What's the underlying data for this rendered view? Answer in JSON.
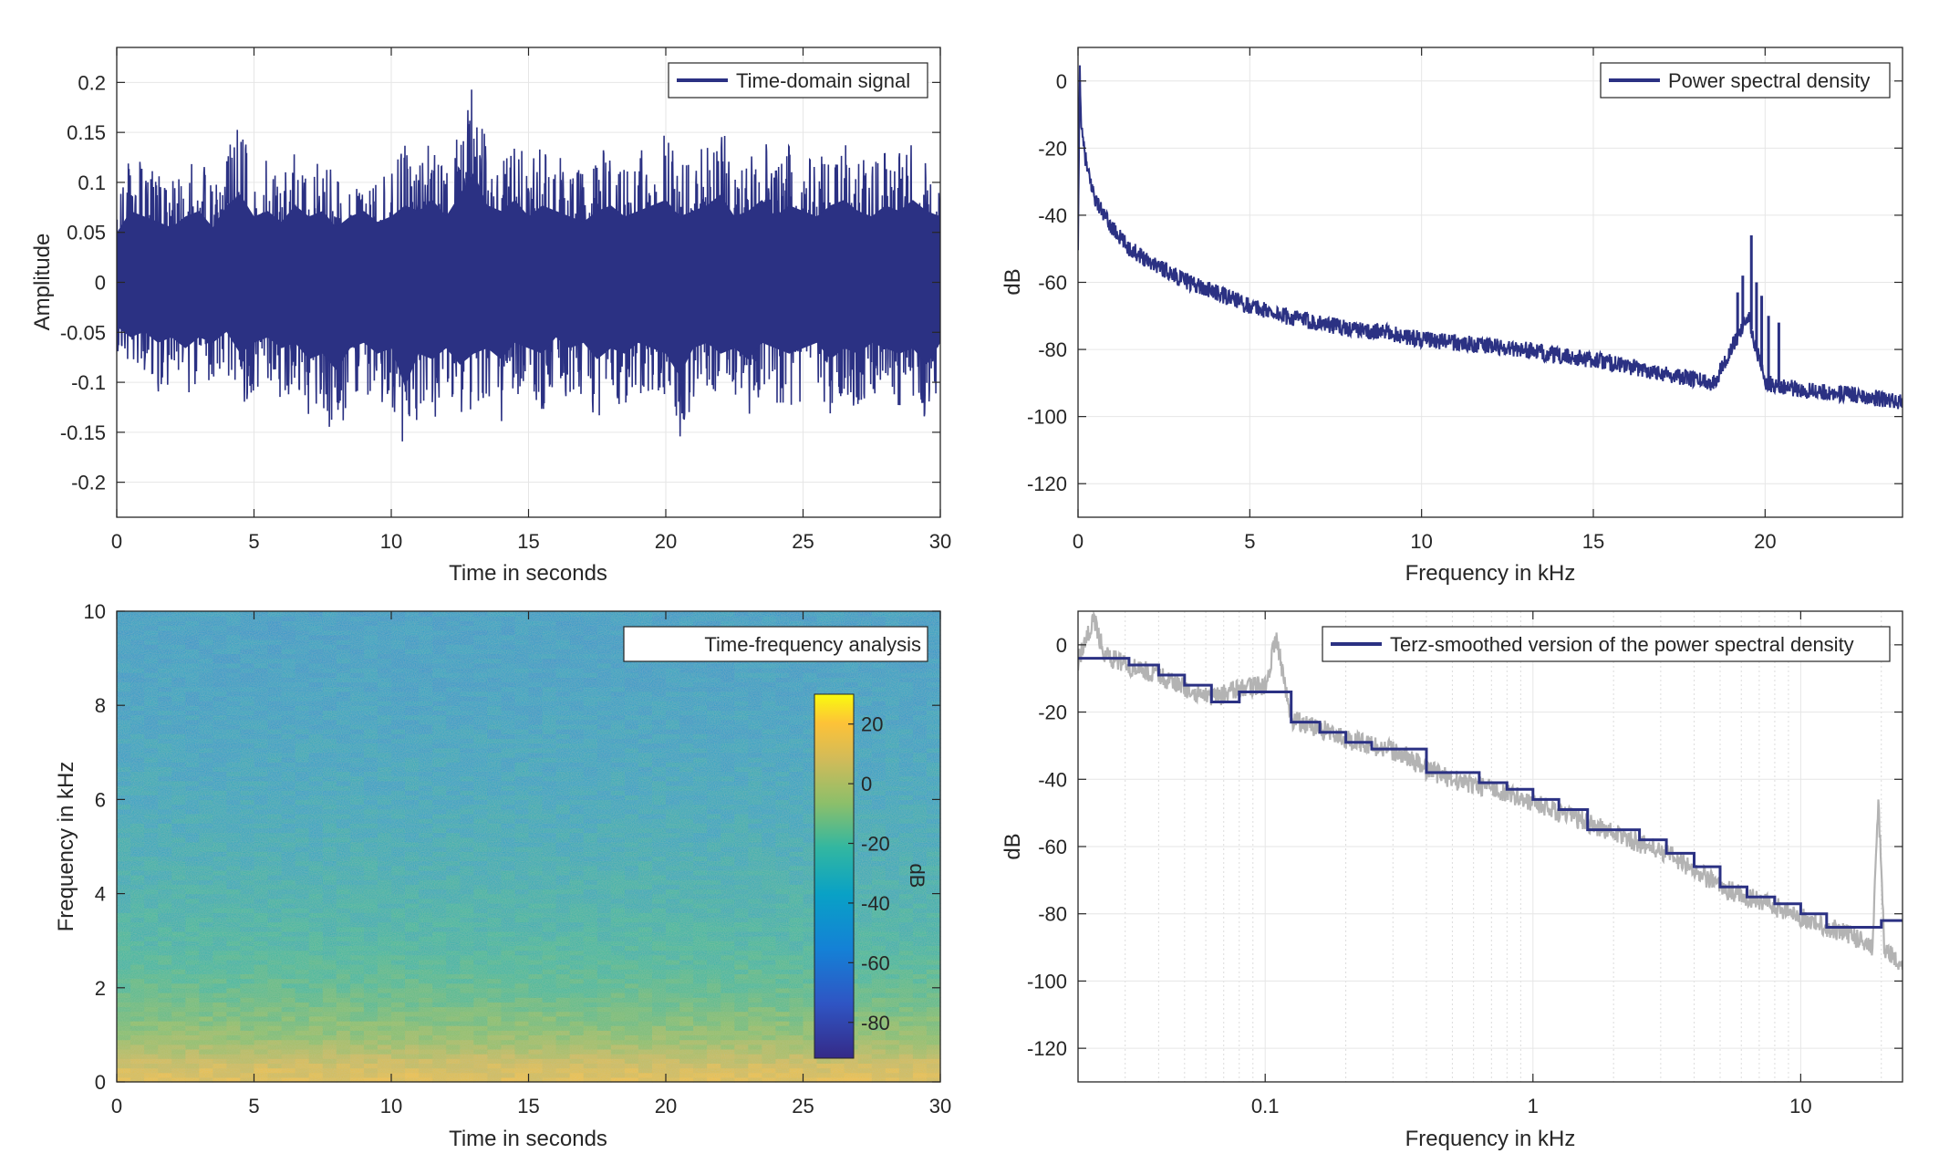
{
  "figure": {
    "background": "#ffffff",
    "colors": {
      "series": "#2b3183",
      "raw_psd": "#b3b3b3",
      "grid": "#e6e6e6",
      "grid_minor": "#dcdcdc",
      "axis": "#262626",
      "legend_border": "#262626"
    }
  },
  "chart_data": [
    {
      "id": "time_signal",
      "type": "line",
      "title": "",
      "xlabel": "Time in seconds",
      "ylabel": "Amplitude",
      "xlim": [
        0,
        30
      ],
      "ylim": [
        -0.235,
        0.235
      ],
      "xticks": [
        0,
        5,
        10,
        15,
        20,
        25,
        30
      ],
      "xtick_labels": [
        "0",
        "5",
        "10",
        "15",
        "20",
        "25",
        "30"
      ],
      "yticks": [
        -0.2,
        -0.15,
        -0.1,
        -0.05,
        0,
        0.05,
        0.1,
        0.15,
        0.2
      ],
      "ytick_labels": [
        "-0.2",
        "-0.15",
        "-0.1",
        "-0.05",
        "0",
        "0.05",
        "0.1",
        "0.15",
        "0.2"
      ],
      "grid": true,
      "legend_position": "top-right",
      "series": [
        {
          "name": "Time-domain signal",
          "color": "#2b3183",
          "sample_interval_s": 0.5,
          "upper_envelope": [
            0.09,
            0.13,
            0.12,
            0.11,
            0.1,
            0.12,
            0.13,
            0.1,
            0.14,
            0.16,
            0.12,
            0.13,
            0.11,
            0.14,
            0.12,
            0.13,
            0.1,
            0.12,
            0.13,
            0.11,
            0.12,
            0.14,
            0.13,
            0.15,
            0.12,
            0.16,
            0.2,
            0.14,
            0.13,
            0.15,
            0.12,
            0.14,
            0.13,
            0.12,
            0.11,
            0.13,
            0.14,
            0.12,
            0.13,
            0.14,
            0.15,
            0.12,
            0.13,
            0.14,
            0.16,
            0.12,
            0.13,
            0.15,
            0.12,
            0.14,
            0.13,
            0.12,
            0.14,
            0.15,
            0.13,
            0.12,
            0.14,
            0.13,
            0.15,
            0.13,
            0.12
          ],
          "lower_envelope": [
            -0.08,
            -0.1,
            -0.09,
            -0.11,
            -0.1,
            -0.12,
            -0.1,
            -0.11,
            -0.09,
            -0.13,
            -0.11,
            -0.1,
            -0.12,
            -0.11,
            -0.14,
            -0.13,
            -0.16,
            -0.12,
            -0.11,
            -0.13,
            -0.12,
            -0.19,
            -0.13,
            -0.14,
            -0.12,
            -0.15,
            -0.13,
            -0.12,
            -0.14,
            -0.11,
            -0.12,
            -0.13,
            -0.1,
            -0.12,
            -0.11,
            -0.14,
            -0.12,
            -0.13,
            -0.11,
            -0.12,
            -0.13,
            -0.17,
            -0.12,
            -0.11,
            -0.13,
            -0.12,
            -0.14,
            -0.11,
            -0.12,
            -0.13,
            -0.12,
            -0.11,
            -0.14,
            -0.12,
            -0.13,
            -0.11,
            -0.12,
            -0.13,
            -0.12,
            -0.15,
            -0.11
          ]
        }
      ]
    },
    {
      "id": "psd",
      "type": "line",
      "title": "",
      "xlabel": "Frequency in kHz",
      "ylabel": "dB",
      "xlim": [
        0,
        24
      ],
      "ylim": [
        -130,
        10
      ],
      "xticks": [
        0,
        5,
        10,
        15,
        20
      ],
      "xtick_labels": [
        "0",
        "5",
        "10",
        "15",
        "20"
      ],
      "yticks": [
        -120,
        -100,
        -80,
        -60,
        -40,
        -20,
        0
      ],
      "ytick_labels": [
        "-120",
        "-100",
        "-80",
        "-60",
        "-40",
        "-20",
        "0"
      ],
      "grid": true,
      "legend_position": "top-right",
      "series": [
        {
          "name": "Power spectral density",
          "color": "#2b3183",
          "x": [
            0,
            0.05,
            0.1,
            0.2,
            0.3,
            0.5,
            0.75,
            1,
            1.5,
            2,
            2.5,
            3,
            4,
            5,
            6,
            7,
            8,
            9,
            10,
            11,
            12,
            13,
            14,
            15,
            16,
            17,
            18,
            18.5,
            19,
            19.5,
            20,
            21,
            22,
            23,
            24
          ],
          "y": [
            -52,
            5,
            -15,
            -22,
            -28,
            -35,
            -40,
            -44,
            -50,
            -53,
            -56,
            -59,
            -63,
            -67,
            -70,
            -72,
            -74,
            -75,
            -77,
            -78,
            -79,
            -80,
            -82,
            -83,
            -85,
            -87,
            -89,
            -90,
            -80,
            -70,
            -90,
            -92,
            -93,
            -94,
            -96
          ],
          "band_halfwidth_db": 2.5,
          "spikes": [
            {
              "x": 19.2,
              "y": -63
            },
            {
              "x": 19.35,
              "y": -58
            },
            {
              "x": 19.6,
              "y": -46
            },
            {
              "x": 19.75,
              "y": -60
            },
            {
              "x": 19.9,
              "y": -64
            },
            {
              "x": 20.1,
              "y": -70
            },
            {
              "x": 20.4,
              "y": -72
            }
          ]
        }
      ]
    },
    {
      "id": "spectrogram",
      "type": "heatmap",
      "title": "",
      "xlabel": "Time in seconds",
      "ylabel": "Frequency in kHz",
      "xlim": [
        0,
        30
      ],
      "ylim": [
        0,
        10
      ],
      "xticks": [
        0,
        5,
        10,
        15,
        20,
        25,
        30
      ],
      "xtick_labels": [
        "0",
        "5",
        "10",
        "15",
        "20",
        "25",
        "30"
      ],
      "yticks": [
        0,
        2,
        4,
        6,
        8,
        10
      ],
      "ytick_labels": [
        "0",
        "2",
        "4",
        "6",
        "8",
        "10"
      ],
      "grid": false,
      "legend": {
        "label": "Time-frequency analysis",
        "position": "top-right"
      },
      "colorbar": {
        "label": "dB",
        "limits": [
          -92,
          30
        ],
        "ticks": [
          20,
          0,
          -20,
          -40,
          -60,
          -80
        ],
        "tick_labels": [
          "20",
          "0",
          "-20",
          "-40",
          "-60",
          "-80"
        ],
        "position": "inside-right"
      },
      "level_profile": {
        "frequency_khz": [
          0,
          0.2,
          0.4,
          0.7,
          1,
          1.5,
          2,
          3,
          4,
          5,
          6,
          7,
          8,
          9,
          10
        ],
        "level_db": [
          14,
          12,
          8,
          0,
          -6,
          -12,
          -17,
          -24,
          -28,
          -32,
          -35,
          -37,
          -39,
          -40,
          -41
        ]
      }
    },
    {
      "id": "terz_psd",
      "type": "line",
      "title": "",
      "xlabel": "Frequency in kHz",
      "ylabel": "dB",
      "xscale": "log",
      "xlim": [
        0.02,
        24
      ],
      "ylim": [
        -130,
        10
      ],
      "xticks": [
        0.1,
        1,
        10
      ],
      "xtick_labels": [
        "0.1",
        "1",
        "10"
      ],
      "yticks": [
        -120,
        -100,
        -80,
        -60,
        -40,
        -20,
        0
      ],
      "ytick_labels": [
        "-120",
        "-100",
        "-80",
        "-60",
        "-40",
        "-20",
        "0"
      ],
      "grid": true,
      "legend_position": "top-right",
      "series": [
        {
          "name": "Terz-smoothed version of the power spectral density",
          "color": "#2b3183",
          "x": [
            0.02,
            0.025,
            0.031,
            0.04,
            0.05,
            0.063,
            0.08,
            0.1,
            0.125,
            0.16,
            0.2,
            0.25,
            0.315,
            0.4,
            0.5,
            0.63,
            0.8,
            1,
            1.25,
            1.6,
            2,
            2.5,
            3.15,
            4,
            5,
            6.3,
            8,
            10,
            12.5,
            16,
            20,
            24
          ],
          "y": [
            -4,
            -4,
            -6,
            -9,
            -12,
            -17,
            -14,
            -14,
            -23,
            -26,
            -29,
            -31,
            -31,
            -38,
            -38,
            -41,
            -43,
            -46,
            -49,
            -55,
            -55,
            -58,
            -62,
            -66,
            -72,
            -75,
            -77,
            -80,
            -84,
            -84,
            -82,
            -82
          ]
        },
        {
          "name": "",
          "color": "#b3b3b3",
          "x": [
            0.02,
            0.023,
            0.025,
            0.03,
            0.04,
            0.05,
            0.063,
            0.08,
            0.1,
            0.11,
            0.125,
            0.16,
            0.2,
            0.25,
            0.315,
            0.4,
            0.5,
            0.63,
            0.8,
            1,
            1.25,
            1.6,
            2,
            2.5,
            3.15,
            4,
            5,
            6.3,
            8,
            10,
            12.5,
            15,
            17,
            18.5,
            19.5,
            20.5,
            24
          ],
          "y": [
            -5,
            8,
            -3,
            -6,
            -9,
            -13,
            -16,
            -13,
            -12,
            2,
            -22,
            -25,
            -28,
            -30,
            -32,
            -37,
            -40,
            -42,
            -44,
            -47,
            -50,
            -53,
            -56,
            -59,
            -62,
            -67,
            -72,
            -75,
            -78,
            -81,
            -84,
            -86,
            -88,
            -90,
            -46,
            -90,
            -97
          ],
          "band_halfwidth_db": 3
        }
      ]
    }
  ]
}
